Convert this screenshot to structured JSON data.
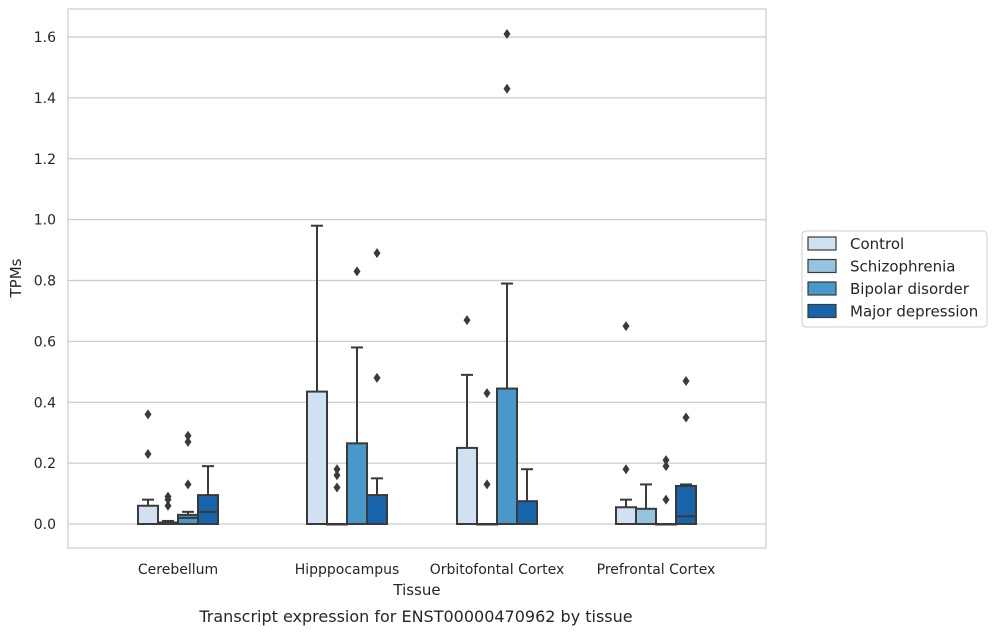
{
  "chart_data": {
    "type": "boxplot",
    "caption": "Transcript expression for ENST00000470962 by tissue",
    "xlabel": "Tissue",
    "ylabel": "TPMs",
    "ylim": [
      -0.08,
      1.69
    ],
    "yticks": [
      0.0,
      0.2,
      0.4,
      0.6,
      0.8,
      1.0,
      1.2,
      1.4,
      1.6
    ],
    "ytick_labels": [
      "0.0",
      "0.2",
      "0.4",
      "0.6",
      "0.8",
      "1.0",
      "1.2",
      "1.4",
      "1.6"
    ],
    "categories": [
      "Cerebellum",
      "Hipppocampus",
      "Orbitofontal Cortex",
      "Prefrontal Cortex"
    ],
    "grid": "horizontal",
    "legend_position": "right",
    "series": [
      {
        "name": "Control",
        "color": "#d0e1f2",
        "boxes": [
          {
            "q1": 0,
            "median": 0,
            "q3": 0.06,
            "whisker_low": 0,
            "whisker_high": 0.08,
            "outliers": [
              0.23,
              0.36
            ]
          },
          {
            "q1": 0,
            "median": 0,
            "q3": 0.435,
            "whisker_low": 0,
            "whisker_high": 0.98,
            "outliers": []
          },
          {
            "q1": 0,
            "median": 0,
            "q3": 0.25,
            "whisker_low": 0,
            "whisker_high": 0.49,
            "outliers": [
              0.67
            ]
          },
          {
            "q1": 0,
            "median": 0,
            "q3": 0.055,
            "whisker_low": 0,
            "whisker_high": 0.08,
            "outliers": [
              0.18,
              0.65
            ]
          }
        ]
      },
      {
        "name": "Schizophrenia",
        "color": "#94c4df",
        "boxes": [
          {
            "q1": 0,
            "median": 0,
            "q3": 0.005,
            "whisker_low": 0,
            "whisker_high": 0.01,
            "outliers": [
              0.06,
              0.08,
              0.09
            ]
          },
          {
            "q1": 0,
            "median": 0,
            "q3": 0,
            "whisker_low": 0,
            "whisker_high": 0,
            "outliers": [
              0.12,
              0.16,
              0.18
            ]
          },
          {
            "q1": 0,
            "median": 0,
            "q3": 0,
            "whisker_low": 0,
            "whisker_high": 0,
            "outliers": [
              0.13,
              0.43
            ]
          },
          {
            "q1": 0,
            "median": 0,
            "q3": 0.05,
            "whisker_low": 0,
            "whisker_high": 0.13,
            "outliers": []
          }
        ]
      },
      {
        "name": "Bipolar disorder",
        "color": "#4a98c9",
        "boxes": [
          {
            "q1": 0,
            "median": 0.02,
            "q3": 0.03,
            "whisker_low": 0,
            "whisker_high": 0.04,
            "outliers": [
              0.13,
              0.27,
              0.29
            ]
          },
          {
            "q1": 0,
            "median": 0,
            "q3": 0.265,
            "whisker_low": 0,
            "whisker_high": 0.58,
            "outliers": [
              0.83
            ]
          },
          {
            "q1": 0,
            "median": 0,
            "q3": 0.445,
            "whisker_low": 0,
            "whisker_high": 0.79,
            "outliers": [
              1.43,
              1.61
            ]
          },
          {
            "q1": 0,
            "median": 0,
            "q3": 0,
            "whisker_low": 0,
            "whisker_high": 0,
            "outliers": [
              0.08,
              0.19,
              0.21
            ]
          }
        ]
      },
      {
        "name": "Major depression",
        "color": "#1764ab",
        "boxes": [
          {
            "q1": 0,
            "median": 0.04,
            "q3": 0.095,
            "whisker_low": 0,
            "whisker_high": 0.19,
            "outliers": []
          },
          {
            "q1": 0,
            "median": 0,
            "q3": 0.095,
            "whisker_low": 0,
            "whisker_high": 0.15,
            "outliers": [
              0.48,
              0.89
            ]
          },
          {
            "q1": 0,
            "median": 0,
            "q3": 0.075,
            "whisker_low": 0,
            "whisker_high": 0.18,
            "outliers": []
          },
          {
            "q1": 0,
            "median": 0.025,
            "q3": 0.125,
            "whisker_low": 0,
            "whisker_high": 0.13,
            "outliers": [
              0.35,
              0.47
            ]
          }
        ]
      }
    ]
  }
}
